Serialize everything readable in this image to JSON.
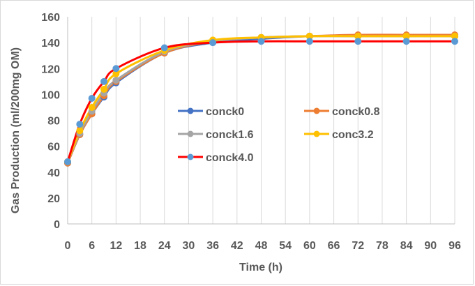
{
  "chart_data": {
    "type": "line",
    "xlabel": "Time (h)",
    "ylabel": "Gas Production (ml/200mg OM)",
    "xlim": [
      0,
      96
    ],
    "ylim": [
      0,
      160
    ],
    "x_ticks": [
      "0",
      "6",
      "12",
      "18",
      "24",
      "30",
      "36",
      "42",
      "48",
      "54",
      "60",
      "66",
      "72",
      "78",
      "84",
      "90",
      "96"
    ],
    "y_ticks": [
      "0",
      "20",
      "40",
      "60",
      "80",
      "100",
      "120",
      "140",
      "160"
    ],
    "grid": "vertical",
    "legend_position": "center-right",
    "series": [
      {
        "name": "conck0",
        "color": "#4472C4",
        "x": [
          0,
          3,
          6,
          9,
          12,
          24,
          36,
          48,
          60,
          72,
          84,
          96
        ],
        "y": [
          47,
          69,
          85,
          98,
          109,
          132,
          140,
          143,
          145,
          145,
          145,
          145
        ]
      },
      {
        "name": "conck0.8",
        "color": "#ED7D31",
        "x": [
          0,
          3,
          6,
          9,
          12,
          24,
          36,
          48,
          60,
          72,
          84,
          96
        ],
        "y": [
          47,
          69,
          85,
          99,
          110,
          132,
          141,
          144,
          145,
          146,
          146,
          146
        ]
      },
      {
        "name": "conck1.6",
        "color": "#A5A5A5",
        "x": [
          0,
          3,
          6,
          9,
          12,
          24,
          36,
          48,
          60,
          72,
          84,
          96
        ],
        "y": [
          48,
          70,
          87,
          101,
          111,
          133,
          141,
          144,
          145,
          145,
          145,
          145
        ]
      },
      {
        "name": "conc3.2",
        "color": "#FFC000",
        "x": [
          0,
          3,
          6,
          9,
          12,
          24,
          36,
          48,
          60,
          72,
          84,
          96
        ],
        "y": [
          48,
          72,
          90,
          104,
          116,
          134,
          142,
          144,
          145,
          145,
          145,
          145
        ]
      },
      {
        "name": "conck4.0",
        "color": "#FF0000",
        "marker_color": "#5B9BD5",
        "x": [
          0,
          3,
          6,
          9,
          12,
          24,
          36,
          48,
          60,
          72,
          84,
          96
        ],
        "y": [
          48,
          77,
          97,
          110,
          120,
          136,
          140,
          141,
          141,
          141,
          141,
          141
        ]
      }
    ]
  }
}
